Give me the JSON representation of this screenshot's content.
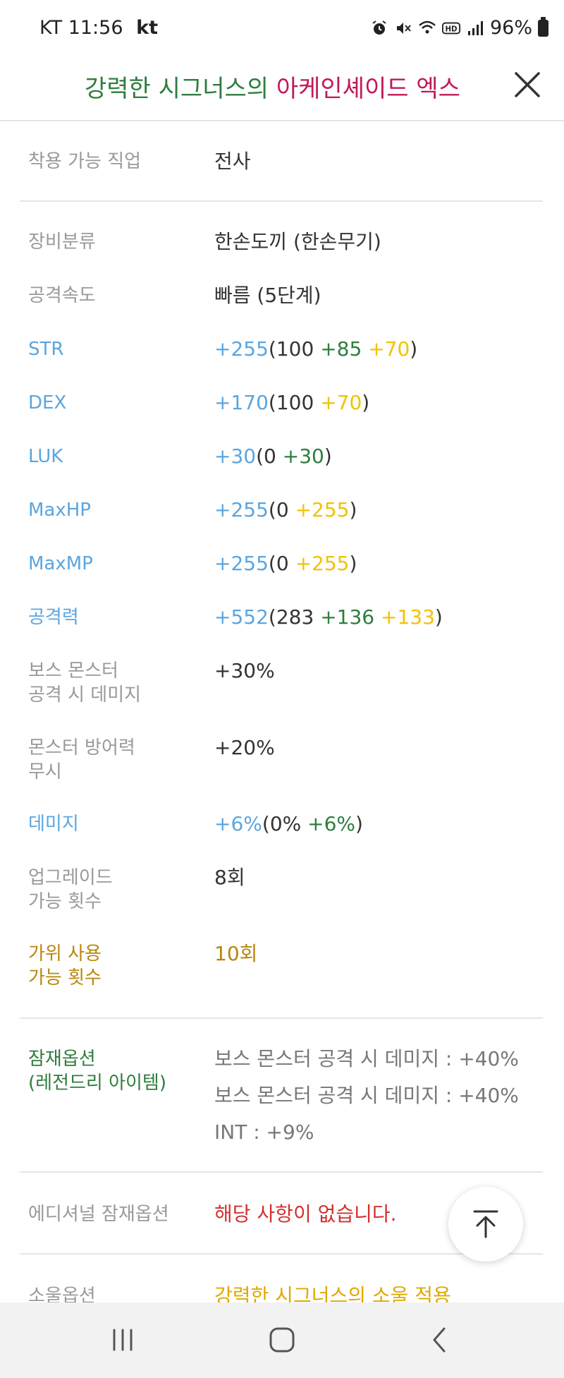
{
  "status_bar": {
    "carrier": "KT",
    "time": "11:56",
    "carrier_logo": "kt",
    "battery": "96%"
  },
  "header": {
    "title_part1": "강력한 시그너스의",
    "title_part2": "아케인셰이드 엑스"
  },
  "job": {
    "label": "착용 가능 직업",
    "value": "전사"
  },
  "category": {
    "label": "장비분류",
    "value": "한손도끼 (한손무기)"
  },
  "speed": {
    "label": "공격속도",
    "value": "빠름 (5단계)"
  },
  "str": {
    "label": "STR",
    "total": "+255",
    "base": "(100",
    "add1": "+85",
    "add2": "+70",
    "close": ")"
  },
  "dex": {
    "label": "DEX",
    "total": "+170",
    "base": "(100",
    "add2": "+70",
    "close": ")"
  },
  "luk": {
    "label": "LUK",
    "total": "+30",
    "base": "(0",
    "add1": "+30",
    "close": ")"
  },
  "maxhp": {
    "label": "MaxHP",
    "total": "+255",
    "base": "(0",
    "add2": "+255",
    "close": ")"
  },
  "maxmp": {
    "label": "MaxMP",
    "total": "+255",
    "base": "(0",
    "add2": "+255",
    "close": ")"
  },
  "attack": {
    "label": "공격력",
    "total": "+552",
    "base": "(283",
    "add1": "+136",
    "add2": "+133",
    "close": ")"
  },
  "boss": {
    "label_line1": "보스 몬스터",
    "label_line2": "공격 시 데미지",
    "value": "+30%"
  },
  "ignore_def": {
    "label_line1": "몬스터 방어력",
    "label_line2": "무시",
    "value": "+20%"
  },
  "damage": {
    "label": "데미지",
    "total": "+6%",
    "base": "(0%",
    "add1": "+6%",
    "close": ")"
  },
  "upgrade": {
    "label_line1": "업그레이드",
    "label_line2": "가능 횟수",
    "value": "8회"
  },
  "scissors": {
    "label_line1": "가위 사용",
    "label_line2": "가능 횟수",
    "value": "10회"
  },
  "potential": {
    "label_line1": "잠재옵션",
    "label_line2": "(레전드리 아이템)",
    "lines": [
      "보스 몬스터 공격 시 데미지 : +40%",
      "보스 몬스터 공격 시 데미지 : +40%",
      "INT : +9%"
    ]
  },
  "additional": {
    "label": "에디셔널 잠재옵션",
    "value": "해당 사항이 없습니다."
  },
  "soul": {
    "label": "소울옵션",
    "value": "강력한 시그너스의 소울 적용"
  }
}
